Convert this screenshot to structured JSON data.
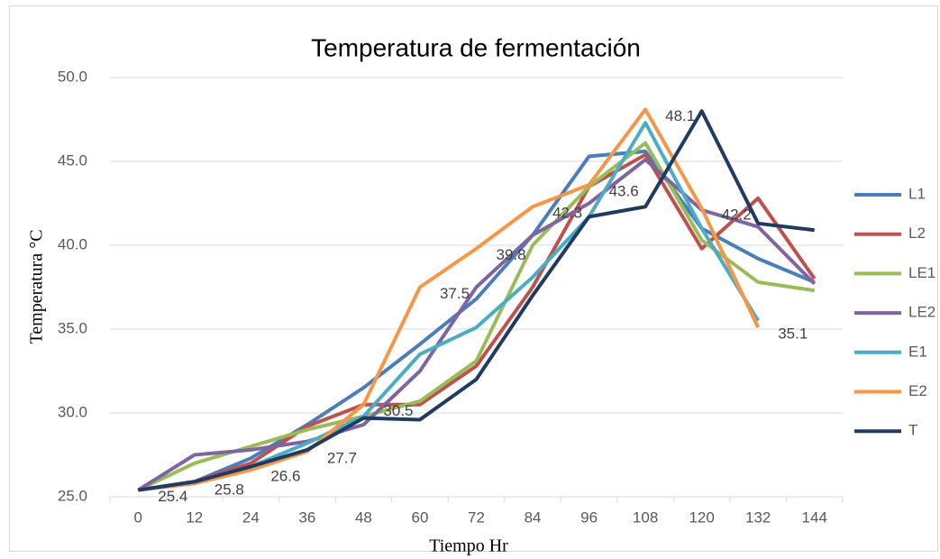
{
  "chart_data": {
    "type": "line",
    "title": "Temperatura de fermentación",
    "x_label": "Tiempo Hr",
    "y_label": "Temperatura °C",
    "categories": [
      0,
      12,
      24,
      36,
      48,
      60,
      72,
      84,
      96,
      108,
      120,
      132,
      144
    ],
    "ylim": [
      25,
      50
    ],
    "yticks": [
      {
        "value": 25,
        "label": "25.0"
      },
      {
        "value": 30,
        "label": "30.0"
      },
      {
        "value": 35,
        "label": "35.0"
      },
      {
        "value": 40,
        "label": "40.0"
      },
      {
        "value": 45,
        "label": "45.0"
      },
      {
        "value": 50,
        "label": "50.0"
      }
    ],
    "grid": true,
    "legend": "right",
    "series": [
      {
        "name": "L1",
        "color": "#4a7ebb",
        "values": [
          25.4,
          25.9,
          27.3,
          29.3,
          31.5,
          34.1,
          36.8,
          40.6,
          45.3,
          45.6,
          41.0,
          39.2,
          37.8
        ]
      },
      {
        "name": "L2",
        "color": "#c0504d",
        "values": [
          25.4,
          25.9,
          27.0,
          29.2,
          30.5,
          30.5,
          32.8,
          37.5,
          43.5,
          45.4,
          39.8,
          42.8,
          38.0
        ]
      },
      {
        "name": "LE1",
        "color": "#9bbb59",
        "values": [
          25.4,
          27.0,
          28.0,
          29.0,
          29.8,
          30.7,
          33.1,
          40.0,
          43.5,
          46.1,
          40.3,
          37.8,
          37.3
        ]
      },
      {
        "name": "LE2",
        "color": "#8064a2",
        "values": [
          25.4,
          27.5,
          27.8,
          28.3,
          29.3,
          32.5,
          37.5,
          40.6,
          42.5,
          45.1,
          42.1,
          41.1,
          37.7
        ]
      },
      {
        "name": "E1",
        "color": "#4bacc6",
        "values": [
          25.4,
          25.8,
          26.8,
          28.2,
          29.8,
          33.5,
          35.1,
          38.1,
          41.7,
          47.3,
          41.0,
          35.5,
          null
        ]
      },
      {
        "name": "E2",
        "color": "#f79646",
        "values": [
          25.4,
          25.8,
          26.6,
          27.7,
          30.5,
          37.5,
          39.8,
          42.3,
          43.6,
          48.1,
          42.2,
          35.1,
          null
        ],
        "data_labels": true
      },
      {
        "name": "T",
        "color": "#1f3b63",
        "values": [
          25.4,
          25.9,
          26.8,
          27.8,
          29.7,
          29.6,
          32.0,
          37.0,
          41.7,
          42.3,
          48.0,
          41.3,
          40.9
        ]
      }
    ]
  }
}
